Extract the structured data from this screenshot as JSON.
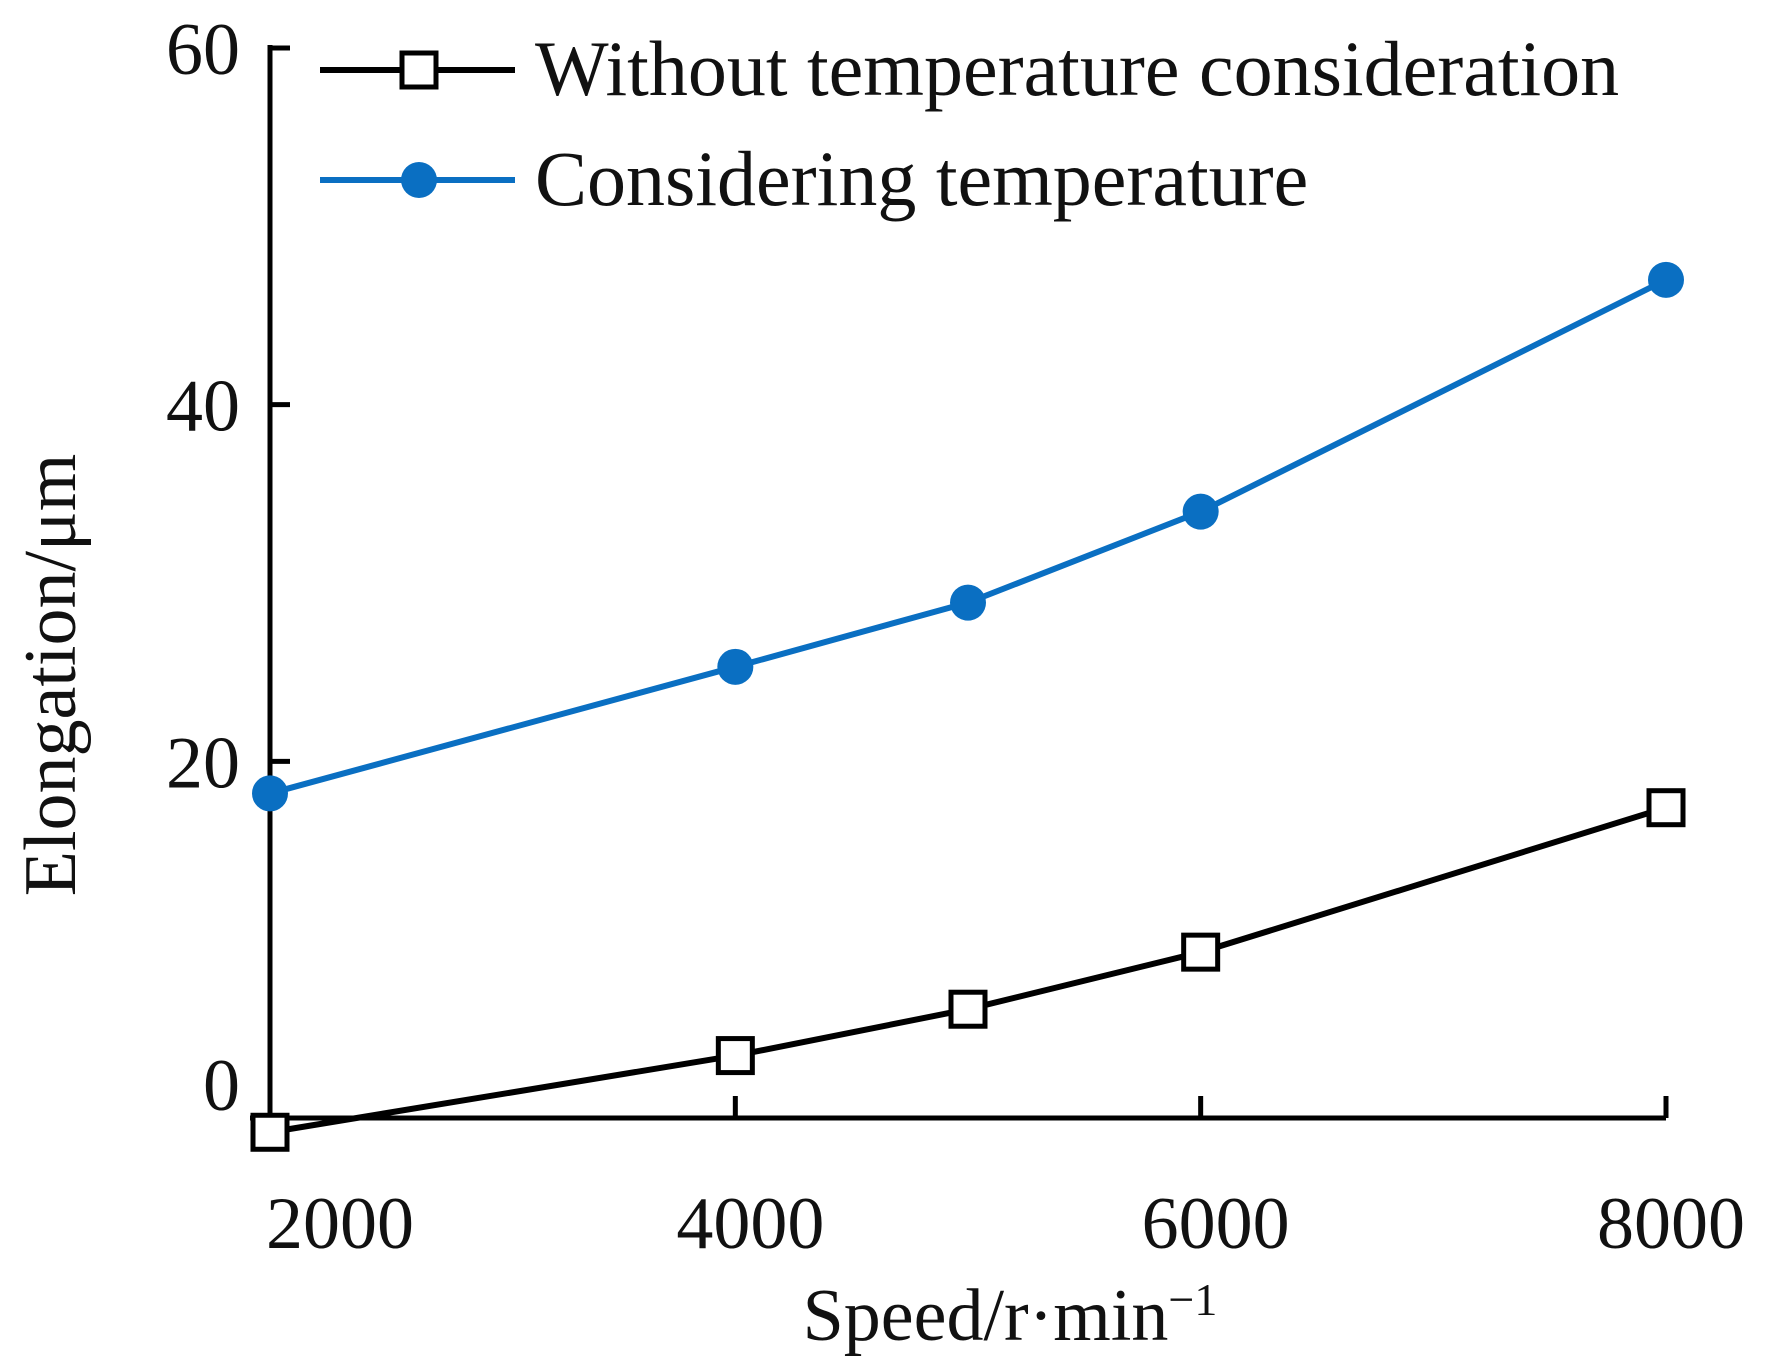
{
  "chart_data": {
    "type": "line",
    "title": "",
    "xlabel": "Speed/r·min",
    "xlabel_sup": "−1",
    "ylabel": "Elongation/μm",
    "x": [
      2000,
      4000,
      5000,
      6000,
      8000
    ],
    "xlim": [
      2000,
      8000
    ],
    "ylim": [
      0,
      60
    ],
    "xticks": [
      2000,
      4000,
      6000,
      8000
    ],
    "xtick_labels": [
      "2000",
      "4000",
      "6000",
      "8000"
    ],
    "yticks": [
      0,
      20,
      40,
      60
    ],
    "ytick_labels": [
      "0",
      "20",
      "40",
      "60"
    ],
    "grid": false,
    "legend_position": "top-left",
    "series": [
      {
        "name": "Without temperature consideration",
        "marker": "open-square",
        "color": "#000000",
        "values": [
          -0.8,
          3.5,
          6.1,
          9.3,
          17.4
        ]
      },
      {
        "name": "Considering temperature",
        "marker": "filled-circle",
        "color": "#0a6fc2",
        "values": [
          18.2,
          25.3,
          28.9,
          34.0,
          47.0
        ]
      }
    ]
  }
}
